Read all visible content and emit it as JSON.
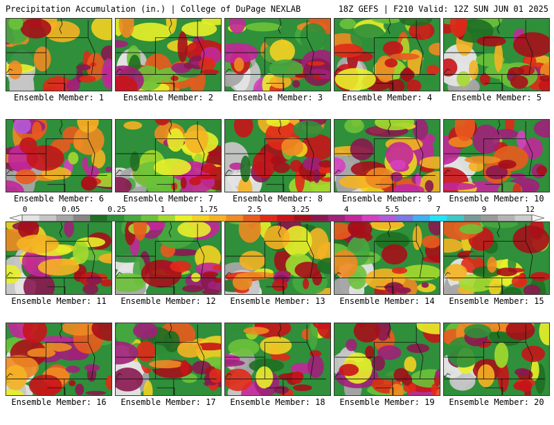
{
  "header": {
    "title_left": "Precipitation Accumulation (in.) | College of DuPage NEXLAB",
    "title_right": "18Z GEFS | F210 Valid: 12Z SUN JUN 01 2025"
  },
  "colorbar": {
    "labels": [
      "0",
      "0.05",
      "0.25",
      "1",
      "1.75",
      "2.5",
      "3.25",
      "4",
      "5.5",
      "7",
      "9",
      "12"
    ],
    "colors": [
      "#e4e4e4",
      "#c6c6c6",
      "#a6a6a6",
      "#868686",
      "#1f6f24",
      "#2f8f3a",
      "#46a83f",
      "#6cc23a",
      "#a4d92f",
      "#e8f02a",
      "#f3d222",
      "#f5b224",
      "#f08a22",
      "#ea5a1e",
      "#e02a18",
      "#c8141a",
      "#a6101a",
      "#8a1850",
      "#a0207a",
      "#c2289a",
      "#d640c0",
      "#b25ad8",
      "#7c78e6",
      "#40b0f0",
      "#26e2f6",
      "#3cc8c8",
      "#7a9a9a",
      "#9a9a9a",
      "#b4b4b4",
      "#cccccc"
    ]
  },
  "members": [
    {
      "label": "Ensemble Member: 1",
      "intensity": 0.75
    },
    {
      "label": "Ensemble Member: 2",
      "intensity": 0.7
    },
    {
      "label": "Ensemble Member: 3",
      "intensity": 0.8
    },
    {
      "label": "Ensemble Member: 4",
      "intensity": 0.5
    },
    {
      "label": "Ensemble Member: 5",
      "intensity": 0.75
    },
    {
      "label": "Ensemble Member: 6",
      "intensity": 0.85
    },
    {
      "label": "Ensemble Member: 7",
      "intensity": 0.8
    },
    {
      "label": "Ensemble Member: 8",
      "intensity": 0.7
    },
    {
      "label": "Ensemble Member: 9",
      "intensity": 0.9
    },
    {
      "label": "Ensemble Member: 10",
      "intensity": 0.85
    },
    {
      "label": "Ensemble Member: 11",
      "intensity": 0.7
    },
    {
      "label": "Ensemble Member: 12",
      "intensity": 0.8
    },
    {
      "label": "Ensemble Member: 13",
      "intensity": 0.65
    },
    {
      "label": "Ensemble Member: 14",
      "intensity": 0.6
    },
    {
      "label": "Ensemble Member: 15",
      "intensity": 0.5
    },
    {
      "label": "Ensemble Member: 16",
      "intensity": 0.8
    },
    {
      "label": "Ensemble Member: 17",
      "intensity": 0.65
    },
    {
      "label": "Ensemble Member: 18",
      "intensity": 0.85
    },
    {
      "label": "Ensemble Member: 19",
      "intensity": 0.75
    },
    {
      "label": "Ensemble Member: 20",
      "intensity": 0.6
    }
  ]
}
